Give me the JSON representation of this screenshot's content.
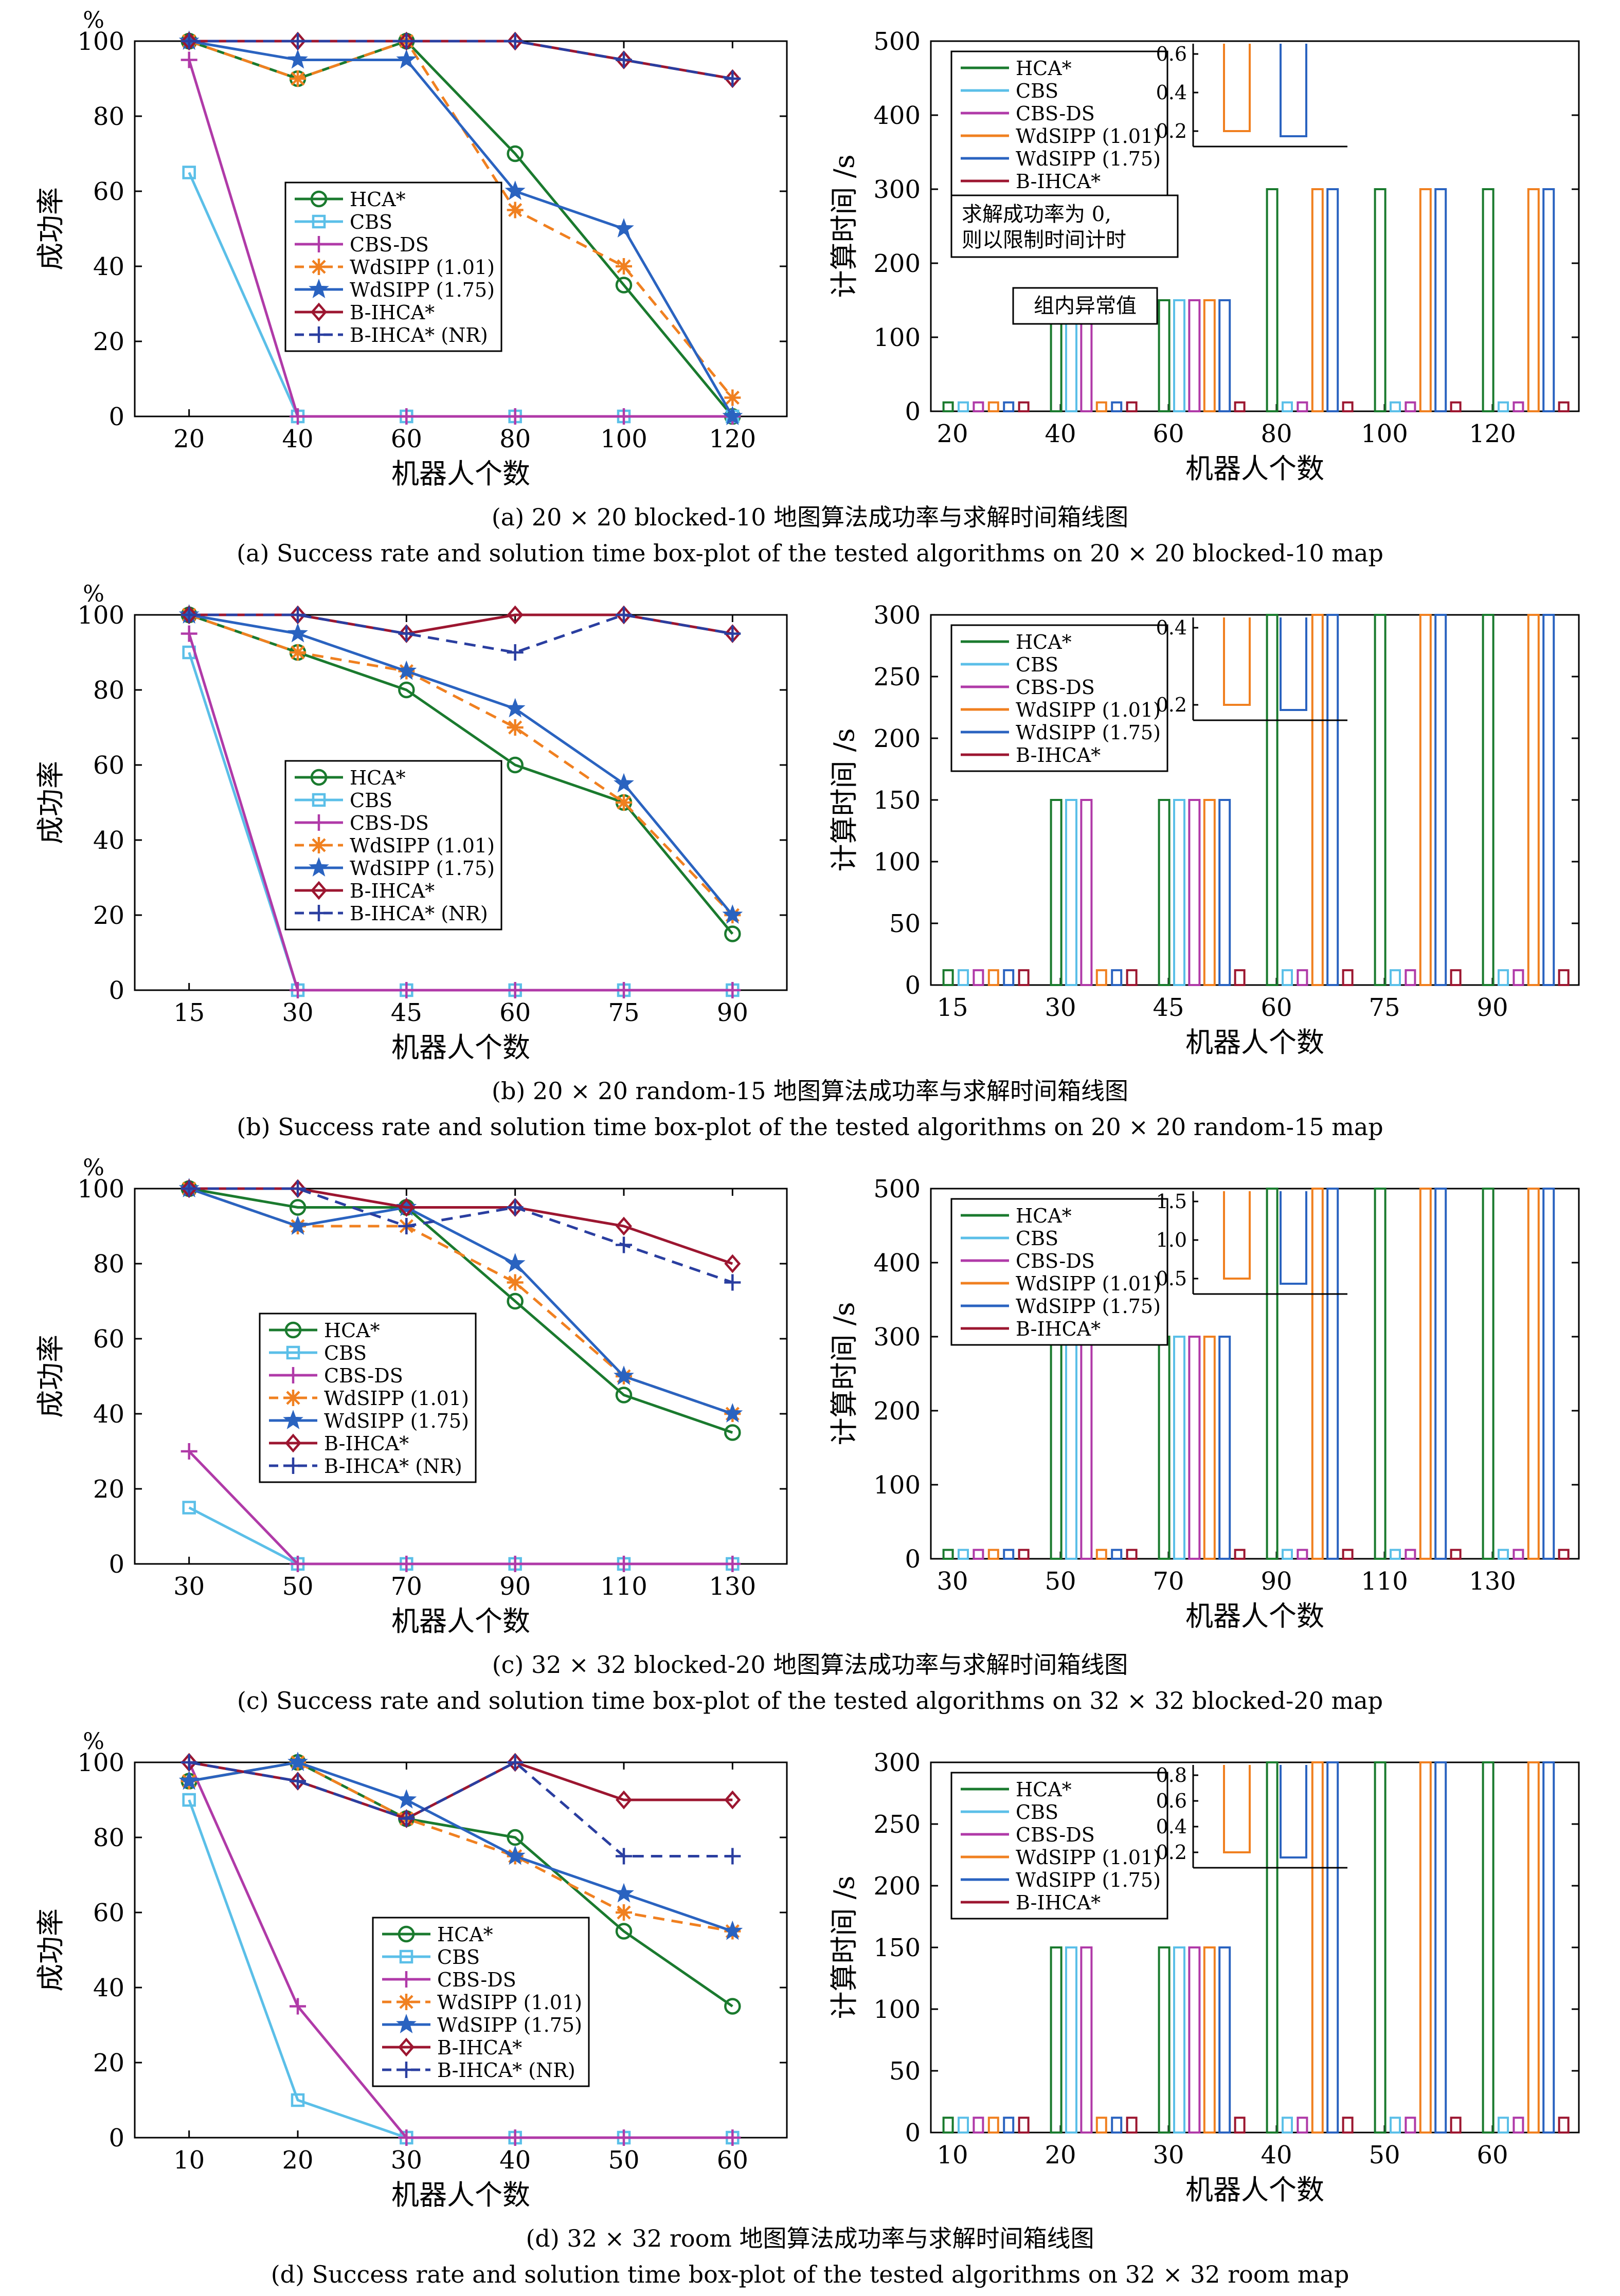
{
  "figure": {
    "subfigures": [
      {
        "caption_cn": "(a) 20 × 20 blocked-10 地图算法成功率与求解时间箱线图",
        "caption_en": "(a) Success rate and solution time box-plot of the tested algorithms on 20 × 20 blocked-10 map"
      },
      {
        "caption_cn": "(b) 20 × 20 random-15 地图算法成功率与求解时间箱线图",
        "caption_en": "(b) Success rate and solution time box-plot of the tested algorithms on 20 × 20 random-15 map"
      },
      {
        "caption_cn": "(c) 32 × 32 blocked-20 地图算法成功率与求解时间箱线图",
        "caption_en": "(c) Success rate and solution time box-plot of the tested algorithms on 32 × 32 blocked-20 map"
      },
      {
        "caption_cn": "(d) 32 × 32 room 地图算法成功率与求解时间箱线图",
        "caption_en": "(d) Success rate and solution time box-plot of the tested algorithms on 32 × 32 room map"
      }
    ]
  },
  "chart_data": [
    {
      "panel": "a",
      "type": "line",
      "unit": "%",
      "xlabel": "机器人个数",
      "ylabel": "成功率",
      "x": [
        20,
        40,
        60,
        80,
        100,
        120
      ],
      "ylim": [
        0,
        100
      ],
      "yticks": [
        0,
        20,
        40,
        60,
        80,
        100
      ],
      "legend": [
        "HCA*",
        "CBS",
        "CBS-DS",
        "WdSIPP (1.01)",
        "WdSIPP (1.75)",
        "B-IHCA*",
        "B-IHCA* (NR)"
      ],
      "series": [
        {
          "name": "HCA*",
          "color": "#1a7a2e",
          "values": [
            100,
            90,
            100,
            70,
            35,
            0
          ]
        },
        {
          "name": "CBS",
          "color": "#5bbfe8",
          "values": [
            65,
            0,
            0,
            0,
            0,
            0
          ]
        },
        {
          "name": "CBS-DS",
          "color": "#b03aa8",
          "values": [
            95,
            0,
            0,
            0,
            0,
            0
          ]
        },
        {
          "name": "WdSIPP (1.01)",
          "color": "#f08020",
          "values": [
            100,
            90,
            100,
            55,
            40,
            5
          ]
        },
        {
          "name": "WdSIPP (1.75)",
          "color": "#2a63c0",
          "values": [
            100,
            95,
            95,
            60,
            50,
            0
          ]
        },
        {
          "name": "B-IHCA*",
          "color": "#9c1630",
          "values": [
            100,
            100,
            100,
            100,
            95,
            90
          ]
        },
        {
          "name": "B-IHCA* (NR)",
          "color": "#2a3ea0",
          "values": [
            100,
            100,
            100,
            100,
            95,
            90
          ]
        }
      ]
    },
    {
      "panel": "a",
      "type": "box",
      "xlabel": "机器人个数",
      "ylabel": "计算时间 /s",
      "categories": [
        20,
        40,
        60,
        80,
        100,
        120
      ],
      "ylim": [
        0,
        500
      ],
      "yticks": [
        0,
        100,
        200,
        300,
        400,
        500
      ],
      "legend": [
        "HCA*",
        "CBS",
        "CBS-DS",
        "WdSIPP (1.01)",
        "WdSIPP (1.75)",
        "B-IHCA*"
      ],
      "annotations": [
        "求解成功率为 0,",
        "则以限制时间计时",
        "组内异常值"
      ],
      "inset": {
        "yticks": [
          "0.2",
          "0.4",
          "0.6"
        ]
      }
    },
    {
      "panel": "b",
      "type": "line",
      "unit": "%",
      "xlabel": "机器人个数",
      "ylabel": "成功率",
      "x": [
        15,
        30,
        45,
        60,
        75,
        90
      ],
      "ylim": [
        0,
        100
      ],
      "yticks": [
        0,
        20,
        40,
        60,
        80,
        100
      ],
      "legend": [
        "HCA*",
        "CBS",
        "CBS-DS",
        "WdSIPP (1.01)",
        "WdSIPP (1.75)",
        "B-IHCA*",
        "B-IHCA* (NR)"
      ],
      "series": [
        {
          "name": "HCA*",
          "color": "#1a7a2e",
          "values": [
            100,
            90,
            80,
            60,
            50,
            15
          ]
        },
        {
          "name": "CBS",
          "color": "#5bbfe8",
          "values": [
            90,
            0,
            0,
            0,
            0,
            0
          ]
        },
        {
          "name": "CBS-DS",
          "color": "#b03aa8",
          "values": [
            95,
            0,
            0,
            0,
            0,
            0
          ]
        },
        {
          "name": "WdSIPP (1.01)",
          "color": "#f08020",
          "values": [
            100,
            90,
            85,
            70,
            50,
            20
          ]
        },
        {
          "name": "WdSIPP (1.75)",
          "color": "#2a63c0",
          "values": [
            100,
            95,
            85,
            75,
            55,
            20
          ]
        },
        {
          "name": "B-IHCA*",
          "color": "#9c1630",
          "values": [
            100,
            100,
            95,
            100,
            100,
            95
          ]
        },
        {
          "name": "B-IHCA* (NR)",
          "color": "#2a3ea0",
          "values": [
            100,
            100,
            95,
            90,
            100,
            95
          ]
        }
      ]
    },
    {
      "panel": "b",
      "type": "box",
      "xlabel": "机器人个数",
      "ylabel": "计算时间 /s",
      "categories": [
        15,
        30,
        45,
        60,
        75,
        90
      ],
      "ylim": [
        0,
        300
      ],
      "yticks": [
        0,
        50,
        100,
        150,
        200,
        250,
        300
      ],
      "legend": [
        "HCA*",
        "CBS",
        "CBS-DS",
        "WdSIPP (1.01)",
        "WdSIPP (1.75)",
        "B-IHCA*"
      ],
      "inset": {
        "yticks": [
          "0.2",
          "0.4"
        ]
      }
    },
    {
      "panel": "c",
      "type": "line",
      "unit": "%",
      "xlabel": "机器人个数",
      "ylabel": "成功率",
      "x": [
        30,
        50,
        70,
        90,
        110,
        130
      ],
      "ylim": [
        0,
        100
      ],
      "yticks": [
        0,
        20,
        40,
        60,
        80,
        100
      ],
      "legend": [
        "HCA*",
        "CBS",
        "CBS-DS",
        "WdSIPP (1.01)",
        "WdSIPP (1.75)",
        "B-IHCA*",
        "B-IHCA* (NR)"
      ],
      "series": [
        {
          "name": "HCA*",
          "color": "#1a7a2e",
          "values": [
            100,
            95,
            95,
            70,
            45,
            35
          ]
        },
        {
          "name": "CBS",
          "color": "#5bbfe8",
          "values": [
            15,
            0,
            0,
            0,
            0,
            0
          ]
        },
        {
          "name": "CBS-DS",
          "color": "#b03aa8",
          "values": [
            30,
            0,
            0,
            0,
            0,
            0
          ]
        },
        {
          "name": "WdSIPP (1.01)",
          "color": "#f08020",
          "values": [
            100,
            90,
            90,
            75,
            50,
            40
          ]
        },
        {
          "name": "WdSIPP (1.75)",
          "color": "#2a63c0",
          "values": [
            100,
            90,
            95,
            80,
            50,
            40
          ]
        },
        {
          "name": "B-IHCA*",
          "color": "#9c1630",
          "values": [
            100,
            100,
            95,
            95,
            90,
            80
          ]
        },
        {
          "name": "B-IHCA* (NR)",
          "color": "#2a3ea0",
          "values": [
            100,
            100,
            90,
            95,
            85,
            75
          ]
        }
      ]
    },
    {
      "panel": "c",
      "type": "box",
      "xlabel": "机器人个数",
      "ylabel": "计算时间 /s",
      "categories": [
        30,
        50,
        70,
        90,
        110,
        130
      ],
      "ylim": [
        0,
        500
      ],
      "yticks": [
        0,
        100,
        200,
        300,
        400,
        500
      ],
      "legend": [
        "HCA*",
        "CBS",
        "CBS-DS",
        "WdSIPP (1.01)",
        "WdSIPP (1.75)",
        "B-IHCA*"
      ],
      "inset": {
        "yticks": [
          "0.5",
          "1.0",
          "1.5"
        ]
      }
    },
    {
      "panel": "d",
      "type": "line",
      "unit": "%",
      "xlabel": "机器人个数",
      "ylabel": "成功率",
      "x": [
        10,
        20,
        30,
        40,
        50,
        60
      ],
      "ylim": [
        0,
        100
      ],
      "yticks": [
        0,
        20,
        40,
        60,
        80,
        100
      ],
      "legend": [
        "HCA*",
        "CBS",
        "CBS-DS",
        "WdSIPP (1.01)",
        "WdSIPP (1.75)",
        "B-IHCA*",
        "B-IHCA* (NR)"
      ],
      "series": [
        {
          "name": "HCA*",
          "color": "#1a7a2e",
          "values": [
            95,
            100,
            85,
            80,
            55,
            35
          ]
        },
        {
          "name": "CBS",
          "color": "#5bbfe8",
          "values": [
            90,
            10,
            0,
            0,
            0,
            0
          ]
        },
        {
          "name": "CBS-DS",
          "color": "#b03aa8",
          "values": [
            100,
            35,
            0,
            0,
            0,
            0
          ]
        },
        {
          "name": "WdSIPP (1.01)",
          "color": "#f08020",
          "values": [
            95,
            100,
            85,
            75,
            60,
            55
          ]
        },
        {
          "name": "WdSIPP (1.75)",
          "color": "#2a63c0",
          "values": [
            95,
            100,
            90,
            75,
            65,
            55
          ]
        },
        {
          "name": "B-IHCA*",
          "color": "#9c1630",
          "values": [
            100,
            95,
            85,
            100,
            90,
            90
          ]
        },
        {
          "name": "B-IHCA* (NR)",
          "color": "#2a3ea0",
          "values": [
            100,
            95,
            85,
            100,
            75,
            75
          ]
        }
      ]
    },
    {
      "panel": "d",
      "type": "box",
      "xlabel": "机器人个数",
      "ylabel": "计算时间 /s",
      "categories": [
        10,
        20,
        30,
        40,
        50,
        60
      ],
      "ylim": [
        0,
        300
      ],
      "yticks": [
        0,
        50,
        100,
        150,
        200,
        250,
        300
      ],
      "legend": [
        "HCA*",
        "CBS",
        "CBS-DS",
        "WdSIPP (1.01)",
        "WdSIPP (1.75)",
        "B-IHCA*"
      ],
      "inset": {
        "yticks": [
          "0.2",
          "0.4",
          "0.6",
          "0.8"
        ]
      }
    }
  ]
}
